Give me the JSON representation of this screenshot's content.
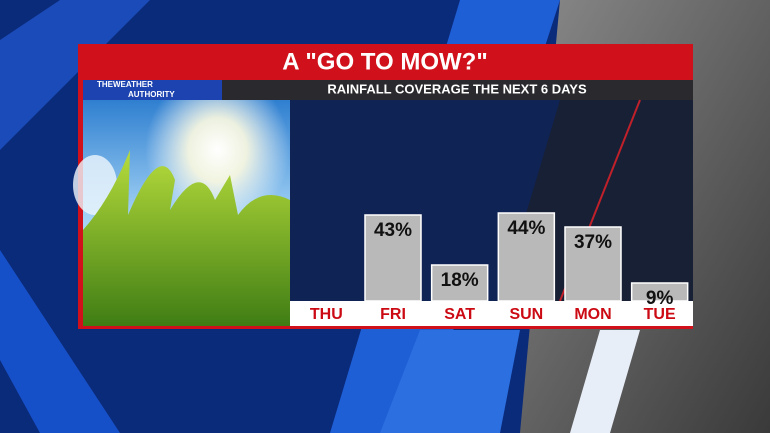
{
  "chart_data": {
    "type": "bar",
    "title": "A \"GO TO MOW?\"",
    "subtitle": "RAINFALL COVERAGE THE NEXT 6 DAYS",
    "logo": [
      "THEWEATHER",
      "AUTHORITY"
    ],
    "categories": [
      "THU",
      "FRI",
      "SAT",
      "SUN",
      "MON",
      "TUE"
    ],
    "values": [
      null,
      43,
      18,
      44,
      37,
      9
    ],
    "value_labels": [
      null,
      "43%",
      "18%",
      "44%",
      "37%",
      "9%"
    ],
    "color": "#b9b9b9",
    "category_color": "#cc0a14",
    "ylim": [
      0,
      100
    ]
  }
}
